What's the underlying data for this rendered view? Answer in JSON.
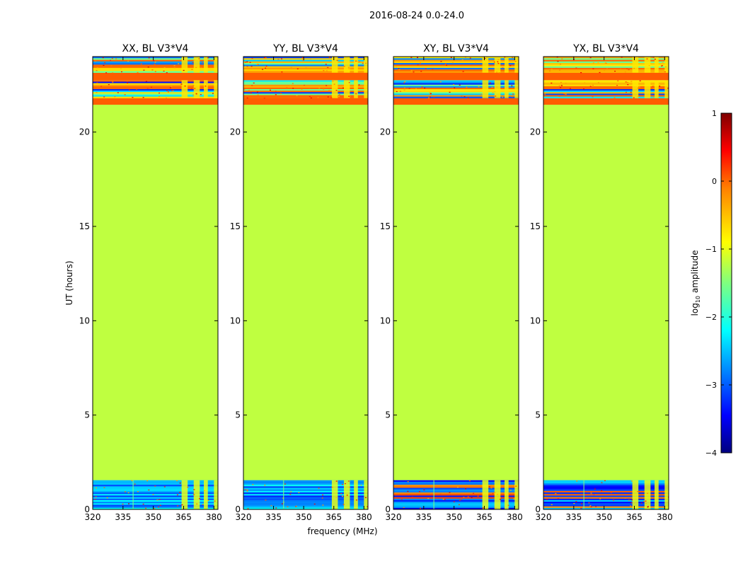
{
  "figure": {
    "suptitle": "2016-08-24 0.0-24.0",
    "xlabel": "frequency (MHz)",
    "ylabel": "UT (hours)"
  },
  "colorbar": {
    "label_main": "log",
    "label_sub": "10",
    "label_tail": " amplitude",
    "range": [
      -4,
      1
    ],
    "ticks": [
      1,
      0,
      -1,
      -2,
      -3,
      -4
    ],
    "tick_labels": [
      "1",
      "0",
      "−1",
      "−2",
      "−3",
      "−4"
    ],
    "colors": [
      "#00007f",
      "#0000ff",
      "#007fff",
      "#00ffff",
      "#7fff7f",
      "#ffff00",
      "#ff7f00",
      "#ff0000",
      "#7f0000"
    ]
  },
  "chart_data": {
    "type": "heatmap",
    "x_range": [
      320,
      382
    ],
    "y_range": [
      0,
      24
    ],
    "x_ticks": [
      320,
      335,
      350,
      365,
      380
    ],
    "y_ticks": [
      0,
      5,
      10,
      15,
      20
    ],
    "panels": [
      {
        "title": "XX, BL V3*V4"
      },
      {
        "title": "YY, BL V3*V4"
      },
      {
        "title": "XY, BL V3*V4"
      },
      {
        "title": "YX, BL V3*V4"
      }
    ],
    "bands": [
      {
        "name": "noisy-start",
        "y": [
          0,
          1.55
        ],
        "value": -2.6
      },
      {
        "name": "flat-fill",
        "y": [
          1.55,
          21.45
        ],
        "value": -1.2
      },
      {
        "name": "orange-band",
        "y": [
          21.45,
          21.8
        ],
        "value": 0.05
      },
      {
        "name": "noisy-mid",
        "y": [
          21.8,
          22.75
        ],
        "value": -1.8
      },
      {
        "name": "orange-band",
        "y": [
          22.75,
          23.15
        ],
        "value": 0.05
      },
      {
        "name": "noisy-top",
        "y": [
          23.15,
          24
        ],
        "value": -1.6
      }
    ],
    "rfi_channels_mhz": [
      [
        364,
        367
      ],
      [
        370,
        373
      ],
      [
        375,
        377
      ],
      [
        380,
        382
      ]
    ]
  }
}
